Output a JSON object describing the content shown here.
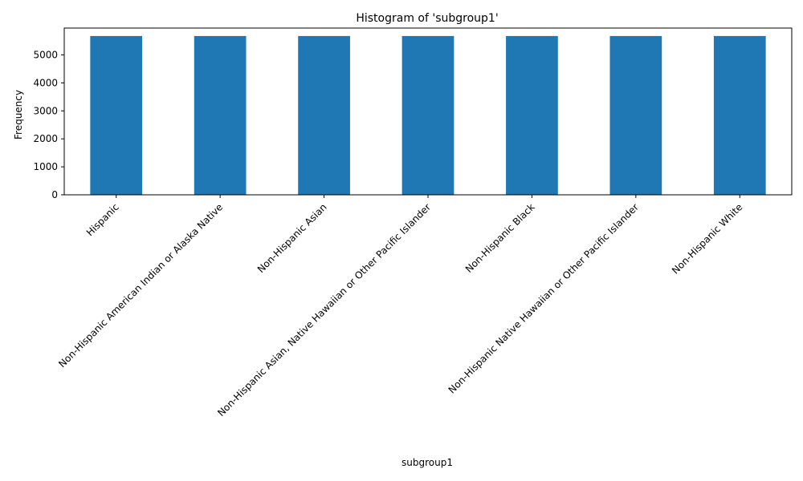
{
  "chart_data": {
    "type": "bar",
    "title": "Histogram of 'subgroup1'",
    "xlabel": "subgroup1",
    "ylabel": "Frequency",
    "categories": [
      "Hispanic",
      "Non-Hispanic American Indian or Alaska Native",
      "Non-Hispanic Asian",
      "Non-Hispanic Asian, Native Hawaiian or Other Pacific Islander",
      "Non-Hispanic Black",
      "Non-Hispanic Native Hawaiian or Other Pacific Islander",
      "Non-Hispanic White"
    ],
    "values": [
      5676,
      5676,
      5676,
      5676,
      5676,
      5676,
      5676
    ],
    "ylim": [
      0,
      5960
    ],
    "yticks": [
      0,
      1000,
      2000,
      3000,
      4000,
      5000
    ],
    "ytick_labels": [
      "0",
      "1000",
      "2000",
      "3000",
      "4000",
      "5000"
    ],
    "bar_color": "#1f77b4",
    "grid": false,
    "legend": null
  }
}
